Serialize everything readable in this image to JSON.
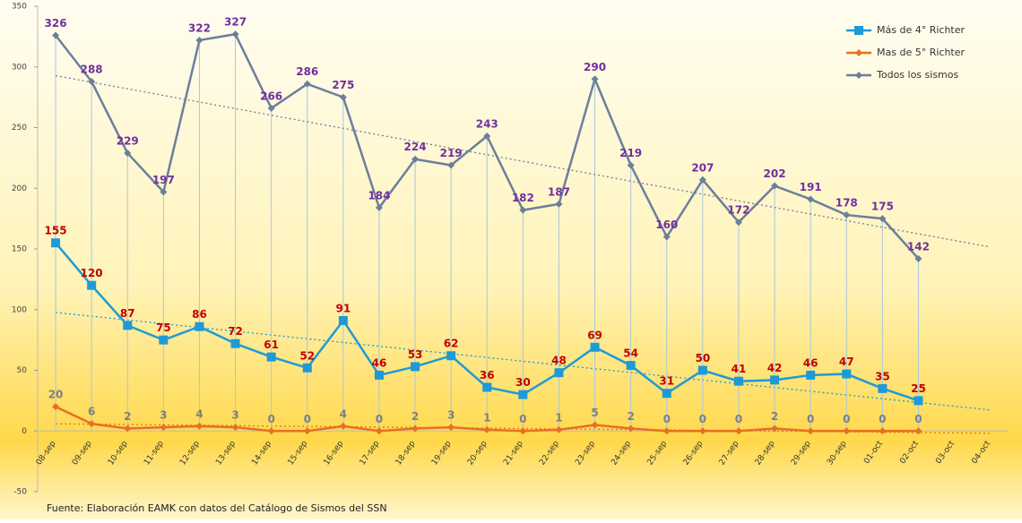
{
  "chart_data": {
    "type": "line",
    "source": "Fuente: Elaboración EAMK con datos del Catálogo de Sismos del SSN",
    "categories": [
      "08-sep",
      "09-sep",
      "10-sep",
      "11-sep",
      "12-sep",
      "13-sep",
      "14-sep",
      "15-sep",
      "16-sep",
      "17-sep",
      "18-sep",
      "19-sep",
      "20-sep",
      "21-sep",
      "22-sep",
      "23-sep",
      "24-sep",
      "25-sep",
      "26-sep",
      "27-sep",
      "28-sep",
      "29-sep",
      "30-sep",
      "01-oct",
      "02-oct",
      "03-oct",
      "04-oct"
    ],
    "series": [
      {
        "name": "Más de 4° Richter",
        "color": "#1e9ad6",
        "label_color": "#c00000",
        "marker": "square",
        "values": [
          155,
          120,
          87,
          75,
          86,
          72,
          61,
          52,
          91,
          46,
          53,
          62,
          36,
          30,
          48,
          69,
          54,
          31,
          50,
          41,
          42,
          46,
          47,
          35,
          25,
          null,
          null
        ]
      },
      {
        "name": "Mas de 5° Richter",
        "color": "#e8701e",
        "label_color": "#7f7f7f",
        "marker": "diamond",
        "values": [
          20,
          6,
          2,
          3,
          4,
          3,
          0,
          0,
          4,
          0,
          2,
          3,
          1,
          0,
          1,
          5,
          2,
          0,
          0,
          0,
          2,
          0,
          0,
          0,
          0,
          null,
          null
        ]
      },
      {
        "name": "Todos los sismos",
        "color": "#6b7f9c",
        "label_color": "#7030a0",
        "marker": "diamond",
        "droplines": true,
        "values": [
          326,
          288,
          229,
          197,
          322,
          327,
          266,
          286,
          275,
          184,
          224,
          219,
          243,
          182,
          187,
          290,
          219,
          160,
          207,
          172,
          202,
          191,
          178,
          175,
          142,
          null,
          null
        ]
      }
    ],
    "ylim": [
      -50,
      350
    ],
    "yticks": [
      -50,
      0,
      50,
      100,
      150,
      200,
      250,
      300,
      350
    ],
    "trendlines": true,
    "legend": "top-right"
  }
}
